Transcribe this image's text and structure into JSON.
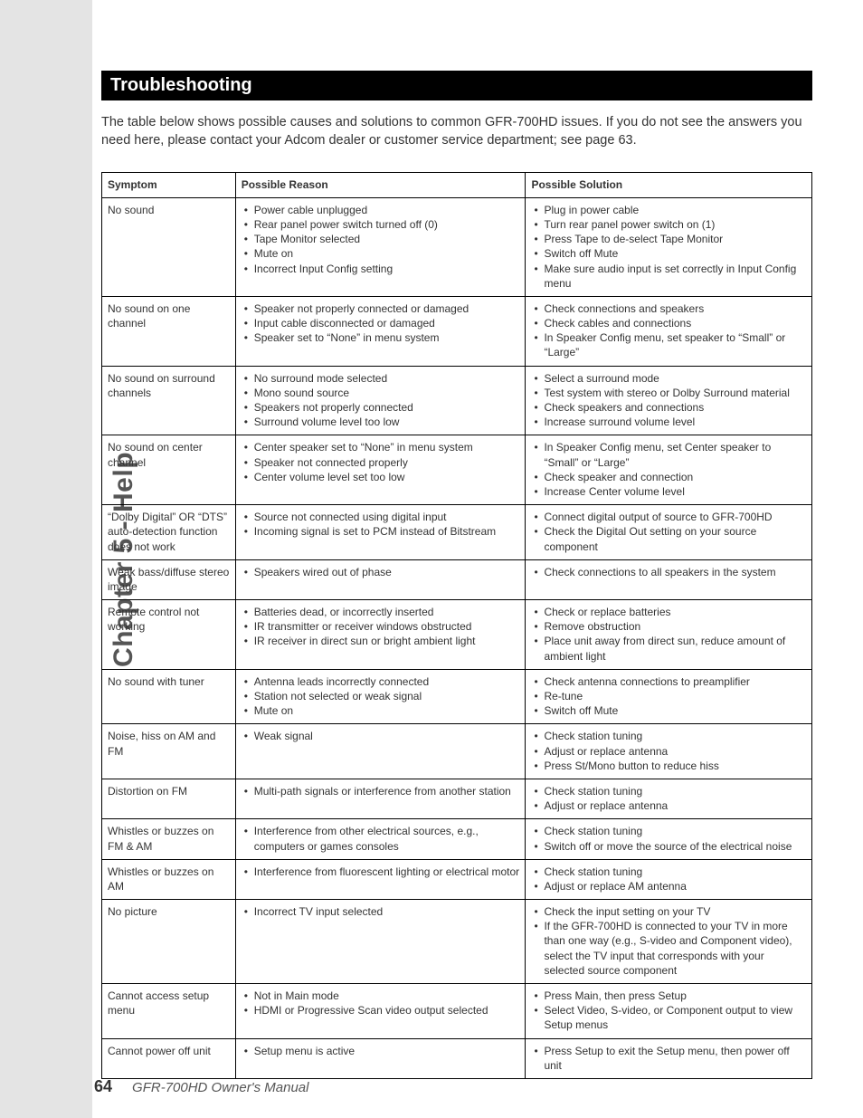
{
  "side_label": "Chapter 5 - Help",
  "section_title": "Troubleshooting",
  "intro_text": "The table below shows possible causes and solutions to common GFR-700HD issues. If you do not see the answers you need here, please contact your Adcom dealer or customer service department; see page 63.",
  "headers": {
    "c1": "Symptom",
    "c2": "Possible Reason",
    "c3": "Possible Solution"
  },
  "rows": [
    {
      "symptom": "No sound",
      "reasons": [
        "Power cable unplugged",
        "Rear panel power switch turned off (0)",
        "Tape Monitor selected",
        "Mute on",
        "Incorrect Input Config setting"
      ],
      "solutions": [
        "Plug in power cable",
        "Turn rear panel power switch on (1)",
        "Press Tape to de-select Tape Monitor",
        "Switch off Mute",
        "Make sure audio input is set correctly in Input Config menu"
      ]
    },
    {
      "symptom": "No sound on one channel",
      "reasons": [
        "Speaker not properly connected or damaged",
        "Input cable disconnected or damaged",
        "Speaker set to “None” in menu system"
      ],
      "solutions": [
        "Check connections and speakers",
        "Check cables and connections",
        "In Speaker Config menu, set speaker to “Small” or “Large”"
      ]
    },
    {
      "symptom": "No sound on surround channels",
      "reasons": [
        "No surround mode selected",
        "Mono sound source",
        "Speakers not properly connected",
        "Surround volume level too low"
      ],
      "solutions": [
        "Select a surround mode",
        "Test system with stereo or Dolby Surround material",
        "Check speakers and connections",
        "Increase surround volume level"
      ]
    },
    {
      "symptom": "No sound on center channel",
      "reasons": [
        "Center speaker set to “None” in menu system",
        "Speaker not connected properly",
        "Center volume level set too low"
      ],
      "solutions": [
        "In Speaker Config menu, set Center speaker to “Small” or “Large”",
        "Check speaker and connection",
        "Increase Center volume level"
      ]
    },
    {
      "symptom": "“Dolby Digital” OR “DTS” auto-detection function does not work",
      "reasons": [
        "Source not connected using digital input",
        "Incoming signal is set to PCM instead of Bitstream"
      ],
      "solutions": [
        "Connect digital output of source to GFR-700HD",
        "Check the Digital Out setting on your source component"
      ]
    },
    {
      "symptom": "Weak bass/diffuse stereo image",
      "reasons": [
        "Speakers wired out of phase"
      ],
      "solutions": [
        "Check connections to all speakers in the system"
      ]
    },
    {
      "symptom": "Remote control not working",
      "reasons": [
        "Batteries dead, or incorrectly inserted",
        "IR transmitter or receiver windows obstructed",
        "IR receiver in direct sun or bright ambient light"
      ],
      "solutions": [
        "Check or replace batteries",
        "Remove obstruction",
        "Place unit away from direct sun, reduce amount of ambient light"
      ]
    },
    {
      "symptom": "No sound with tuner",
      "reasons": [
        "Antenna leads incorrectly connected",
        "Station not selected or weak signal",
        "Mute on"
      ],
      "solutions": [
        "Check antenna connections to preamplifier",
        "Re-tune",
        "Switch off Mute"
      ]
    },
    {
      "symptom": "Noise, hiss on AM and FM",
      "reasons": [
        "Weak signal"
      ],
      "solutions": [
        "Check station tuning",
        "Adjust or replace antenna",
        "Press St/Mono button to reduce hiss"
      ]
    },
    {
      "symptom": "Distortion on FM",
      "reasons": [
        "Multi-path signals or interference from another station"
      ],
      "solutions": [
        "Check station tuning",
        "Adjust or replace antenna"
      ]
    },
    {
      "symptom": "Whistles or buzzes on FM & AM",
      "reasons": [
        "Interference from other electrical sources, e.g., computers or games consoles"
      ],
      "solutions": [
        "Check station tuning",
        "Switch off or move the source of the electrical noise"
      ]
    },
    {
      "symptom": "Whistles or buzzes on AM",
      "reasons": [
        "Interference from fluorescent lighting or electrical motor"
      ],
      "solutions": [
        "Check station tuning",
        "Adjust or replace AM antenna"
      ]
    },
    {
      "symptom": "No picture",
      "reasons": [
        "Incorrect TV input selected"
      ],
      "solutions": [
        "Check the input setting on your TV",
        "If the GFR-700HD is connected to your TV in more than one way (e.g., S-video and Component video), select the TV input that corresponds with your selected source component"
      ]
    },
    {
      "symptom": "Cannot access setup menu",
      "reasons": [
        "Not in Main mode",
        "HDMI or Progressive Scan video output selected"
      ],
      "solutions": [
        "Press Main, then press Setup",
        "Select Video, S-video, or Component output to view Setup menus"
      ]
    },
    {
      "symptom": "Cannot power off unit",
      "reasons": [
        "Setup menu is active"
      ],
      "solutions": [
        "Press Setup to exit the Setup menu, then power off unit"
      ]
    }
  ],
  "page_number": "64",
  "manual_title": "GFR-700HD Owner's Manual"
}
